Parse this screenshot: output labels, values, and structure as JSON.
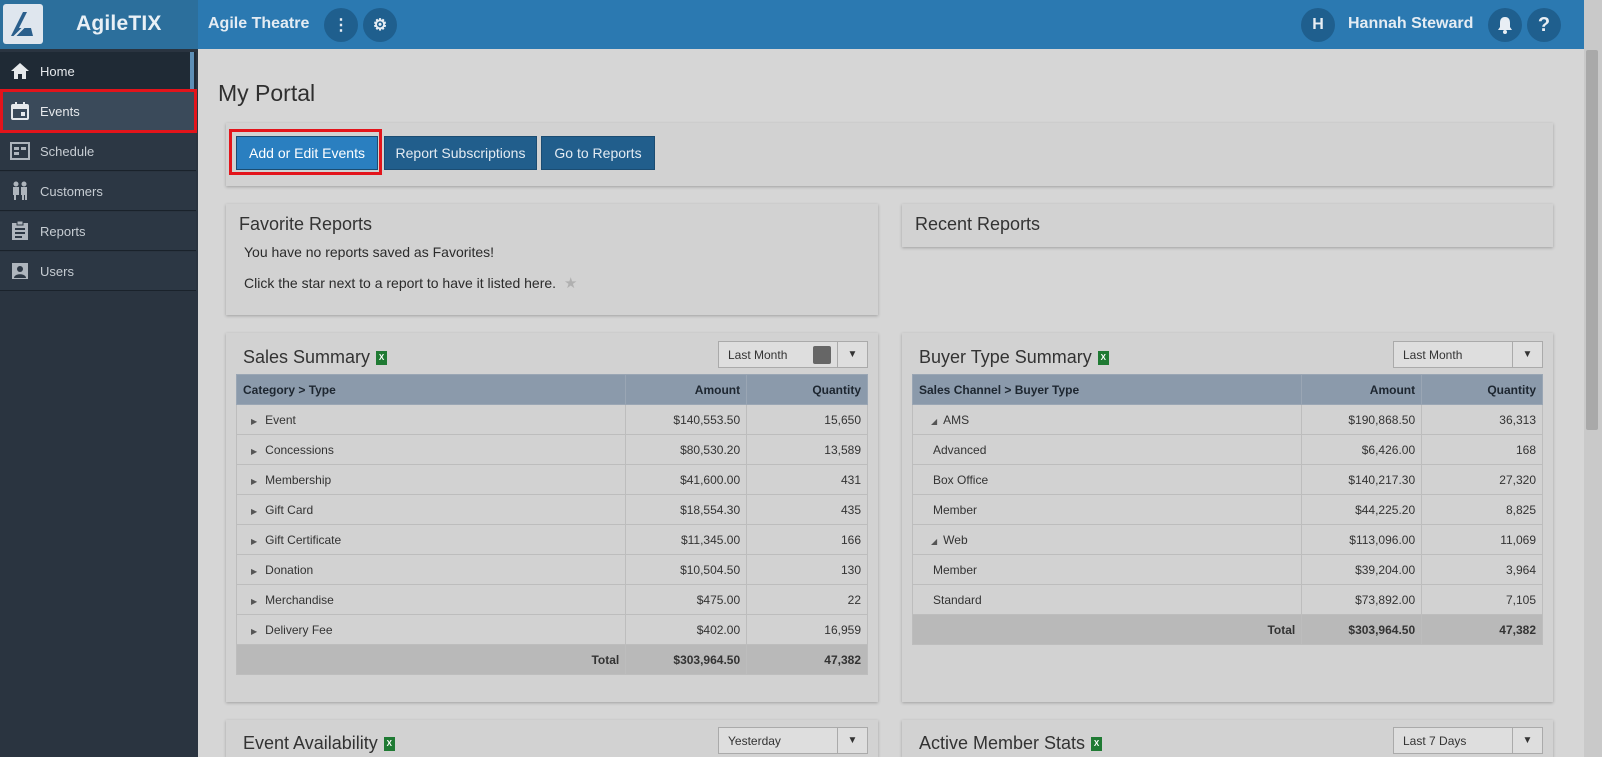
{
  "app": {
    "logo_text": "AgileTIX",
    "org_name": "Agile Theatre",
    "user_initial": "H",
    "user_name": "Hannah Steward"
  },
  "sidebar": {
    "items": [
      {
        "label": "Home",
        "icon": "home-icon"
      },
      {
        "label": "Events",
        "icon": "calendar-icon"
      },
      {
        "label": "Schedule",
        "icon": "schedule-icon"
      },
      {
        "label": "Customers",
        "icon": "customers-icon"
      },
      {
        "label": "Reports",
        "icon": "clipboard-icon"
      },
      {
        "label": "Users",
        "icon": "user-card-icon"
      }
    ]
  },
  "page": {
    "title": "My Portal"
  },
  "actions": {
    "add_edit": "Add or Edit Events",
    "subscriptions": "Report Subscriptions",
    "go_reports": "Go to Reports"
  },
  "favorites": {
    "title": "Favorite Reports",
    "line1": "You have no reports saved as Favorites!",
    "line2": "Click the star next to a report to have it listed here."
  },
  "recent": {
    "title": "Recent Reports"
  },
  "sales_summary": {
    "title": "Sales Summary",
    "period": "Last Month",
    "headers": [
      "Category > Type",
      "Amount",
      "Quantity"
    ],
    "rows": [
      {
        "name": "Event",
        "amount": "$140,553.50",
        "qty": "15,650"
      },
      {
        "name": "Concessions",
        "amount": "$80,530.20",
        "qty": "13,589"
      },
      {
        "name": "Membership",
        "amount": "$41,600.00",
        "qty": "431"
      },
      {
        "name": "Gift Card",
        "amount": "$18,554.30",
        "qty": "435"
      },
      {
        "name": "Gift Certificate",
        "amount": "$11,345.00",
        "qty": "166"
      },
      {
        "name": "Donation",
        "amount": "$10,504.50",
        "qty": "130"
      },
      {
        "name": "Merchandise",
        "amount": "$475.00",
        "qty": "22"
      },
      {
        "name": "Delivery Fee",
        "amount": "$402.00",
        "qty": "16,959"
      }
    ],
    "total": {
      "label": "Total",
      "amount": "$303,964.50",
      "qty": "47,382"
    }
  },
  "buyer_summary": {
    "title": "Buyer Type Summary",
    "period": "Last Month",
    "headers": [
      "Sales Channel > Buyer Type",
      "Amount",
      "Quantity"
    ],
    "rows": [
      {
        "name": "AMS",
        "amount": "$190,868.50",
        "qty": "36,313",
        "group": true
      },
      {
        "name": "Advanced",
        "amount": "$6,426.00",
        "qty": "168",
        "group": false
      },
      {
        "name": "Box Office",
        "amount": "$140,217.30",
        "qty": "27,320",
        "group": false
      },
      {
        "name": "Member",
        "amount": "$44,225.20",
        "qty": "8,825",
        "group": false
      },
      {
        "name": "Web",
        "amount": "$113,096.00",
        "qty": "11,069",
        "group": true
      },
      {
        "name": "Member",
        "amount": "$39,204.00",
        "qty": "3,964",
        "group": false
      },
      {
        "name": "Standard",
        "amount": "$73,892.00",
        "qty": "7,105",
        "group": false
      }
    ],
    "total": {
      "label": "Total",
      "amount": "$303,964.50",
      "qty": "47,382"
    }
  },
  "event_availability": {
    "title": "Event Availability",
    "period": "Yesterday"
  },
  "member_stats": {
    "title": "Active Member Stats",
    "period": "Last 7 Days"
  },
  "colors": {
    "topbar": "#2b79b1",
    "sidebar": "#2a3440",
    "highlight": "#e3141b",
    "primary": "#2a7fc0"
  }
}
